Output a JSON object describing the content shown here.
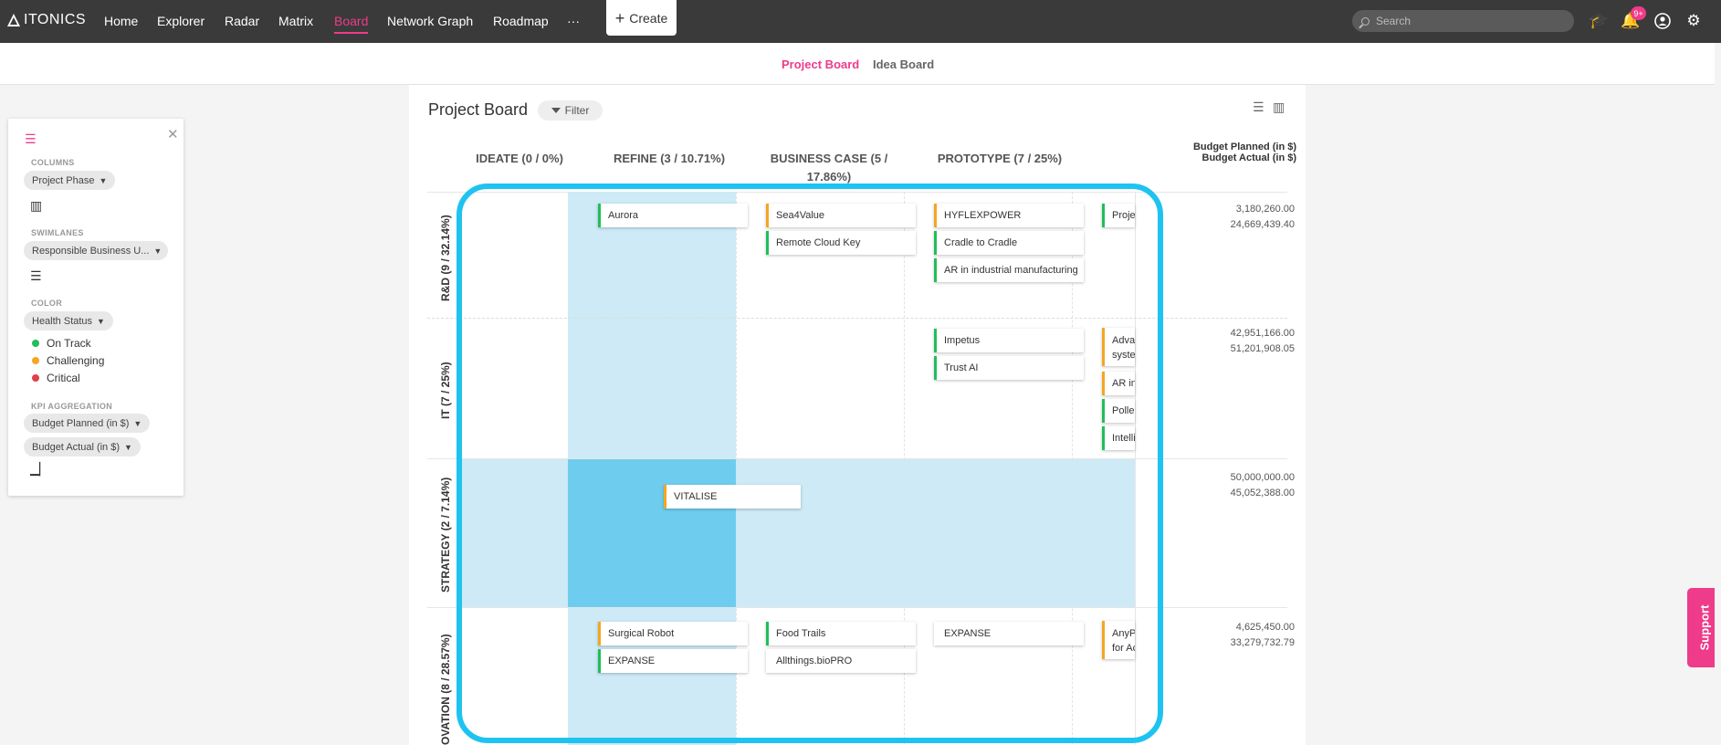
{
  "nav": {
    "logo": "ITONICS",
    "items": [
      "Home",
      "Explorer",
      "Radar",
      "Matrix",
      "Board",
      "Network Graph",
      "Roadmap",
      "···"
    ],
    "active": "Board",
    "create_label": "Create",
    "search_placeholder": "Search",
    "notification_badge": "9+",
    "icons": [
      "graduation-cap-icon",
      "bell-icon",
      "user-icon",
      "gear-icon"
    ]
  },
  "tabs": {
    "project_board": "Project Board",
    "idea_board": "Idea Board"
  },
  "panel": {
    "columns_label": "COLUMNS",
    "columns_value": "Project Phase",
    "swimlanes_label": "SWIMLANES",
    "swimlanes_value": "Responsible Business U...",
    "color_label": "COLOR",
    "color_value": "Health Status",
    "legend": [
      {
        "label": "On Track",
        "color": "#1fbf5a"
      },
      {
        "label": "Challenging",
        "color": "#f5a623"
      },
      {
        "label": "Critical",
        "color": "#e0404b"
      }
    ],
    "kpi_label": "KPI AGGREGATION",
    "kpi_1": "Budget Planned (in $)",
    "kpi_2": "Budget Actual (in $)"
  },
  "board": {
    "title": "Project Board",
    "filter_label": "Filter",
    "columns": [
      "IDEATE (0 / 0%)",
      "REFINE (3 / 10.71%)",
      "BUSINESS CASE (5 / 17.86%)",
      "PROTOTYPE (7 / 25%)"
    ],
    "kpi_header_1": "Budget Planned (in $)",
    "kpi_header_2": "Budget Actual (in $)",
    "lanes": [
      {
        "label": "R&D (9 / 32.14%)",
        "planned": "3,180,260.00",
        "actual": "24,669,439.40"
      },
      {
        "label": "IT (7 / 25%)",
        "planned": "42,951,166.00",
        "actual": "51,201,908.05"
      },
      {
        "label": "STRATEGY (2 / 7.14%)",
        "planned": "50,000,000.00",
        "actual": "45,052,388.00"
      },
      {
        "label": "OVATION (8 / 28.57%)",
        "planned": "4,625,450.00",
        "actual": "33,279,732.79"
      }
    ],
    "cards": {
      "rd_refine": [
        "Aurora"
      ],
      "rd_business": [
        "Sea4Value",
        "Remote Cloud Key"
      ],
      "rd_prototype": [
        "HYFLEXPOWER",
        "Cradle to Cradle",
        "AR in industrial manufacturing"
      ],
      "rd_next": [
        "Projec"
      ],
      "it_prototype": [
        "Impetus",
        "Trust AI"
      ],
      "it_next": [
        "Advan syster",
        "AR in I",
        "Pollen",
        "Intelli"
      ],
      "strategy_drag": "VITALISE",
      "ov_refine": [
        "Surgical Robot",
        "EXPANSE"
      ],
      "ov_business": [
        "Food Trails",
        "Allthings.bioPRO"
      ],
      "ov_prototype": [
        "EXPANSE"
      ],
      "ov_next": [
        "AnyPL for Act"
      ]
    }
  },
  "support_label": "Support"
}
